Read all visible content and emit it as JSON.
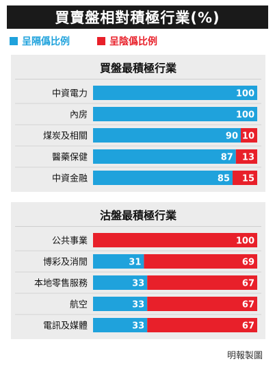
{
  "header": {
    "title": "買賣盤相對積極行業(%)"
  },
  "legend": [
    {
      "label": "呈隔僞比例",
      "color": "#1fa2dc"
    },
    {
      "label": "呈陰僞比例",
      "color": "#e8202a"
    }
  ],
  "colors": {
    "blue": "#1fa2dc",
    "red": "#e8202a",
    "panel_bg": "#ececec",
    "header_bg": "#1a1a1a"
  },
  "chart_data": [
    {
      "type": "bar",
      "title": "買盤最積極行業",
      "stacked": true,
      "orientation": "horizontal",
      "categories": [
        "中資電力",
        "內房",
        "煤炭及相關",
        "醫藥保健",
        "中資金融"
      ],
      "series": [
        {
          "name": "呈隔僞比例",
          "values": [
            100,
            100,
            90,
            87,
            85
          ]
        },
        {
          "name": "呈陰僞比例",
          "values": [
            0,
            0,
            10,
            13,
            15
          ]
        }
      ],
      "xlim": [
        0,
        100
      ]
    },
    {
      "type": "bar",
      "title": "沽盤最積極行業",
      "stacked": true,
      "orientation": "horizontal",
      "categories": [
        "公共事業",
        "博彩及消閒",
        "本地零售服務",
        "航空",
        "電訊及媒體"
      ],
      "series": [
        {
          "name": "呈隔僞比例",
          "values": [
            0,
            31,
            33,
            33,
            33
          ]
        },
        {
          "name": "呈陰僞比例",
          "values": [
            100,
            69,
            67,
            67,
            67
          ]
        }
      ],
      "xlim": [
        0,
        100
      ]
    }
  ],
  "footer": {
    "credit": "明報製圖"
  }
}
